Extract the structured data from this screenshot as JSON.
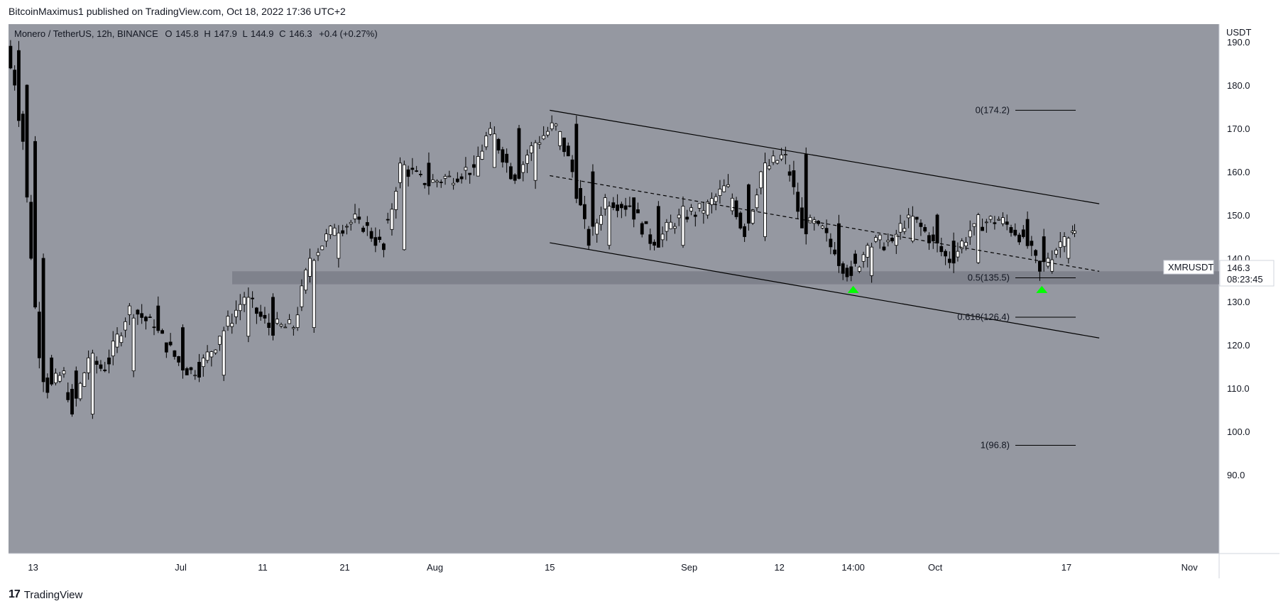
{
  "publisher": "BitcoinMaximus1 published on TradingView.com, Oct 18, 2022 17:36 UTC+2",
  "footer": {
    "logo": "17",
    "brand": "TradingView"
  },
  "legend": {
    "symbol": "Monero / TetherUS, 12h, BINANCE",
    "o_label": "O",
    "o_value": "145.8",
    "h_label": "H",
    "h_value": "147.9",
    "l_label": "L",
    "l_value": "144.9",
    "c_label": "C",
    "c_value": "146.3",
    "change": "+0.4 (+0.27%)"
  },
  "price_axis": {
    "unit": "USDT"
  },
  "price_tag": {
    "symbol": "XMRUSDT",
    "price": "146.3",
    "countdown": "08:23:45"
  },
  "colors": {
    "background": "#9598a1",
    "axis_bg": "#ffffff",
    "candle_up": "#ffffff",
    "candle_down": "#000000",
    "support_zone": "#787b86",
    "marker": "#00ff00"
  },
  "chart_data": {
    "type": "candlestick",
    "timeframe": "12h",
    "ylim": [
      90,
      190
    ],
    "y_ticks": [
      90,
      100,
      110,
      120,
      130,
      140,
      150,
      160,
      170,
      180,
      190
    ],
    "y_tick_labels": [
      "90.0",
      "100.0",
      "110.0",
      "120.0",
      "130.0",
      "140.0",
      "150.0",
      "160.0",
      "170.0",
      "180.0",
      "190.0"
    ],
    "x_range": [
      "2022-06-10",
      "2022-11-06"
    ],
    "x_ticks": [
      {
        "date": "2022-06-13",
        "label": "13"
      },
      {
        "date": "2022-07-01",
        "label": "Jul"
      },
      {
        "date": "2022-07-11",
        "label": "11"
      },
      {
        "date": "2022-07-21",
        "label": "21"
      },
      {
        "date": "2022-08-01",
        "label": "Aug"
      },
      {
        "date": "2022-08-15",
        "label": "15"
      },
      {
        "date": "2022-09-01",
        "label": "Sep"
      },
      {
        "date": "2022-09-12",
        "label": "12"
      },
      {
        "date": "2022-09-21",
        "label": "14:00"
      },
      {
        "date": "2022-10-01",
        "label": "Oct"
      },
      {
        "date": "2022-10-17",
        "label": "17"
      },
      {
        "date": "2022-11-01",
        "label": "Nov"
      }
    ],
    "ohlc_anchors": [
      {
        "date": "2022-06-10",
        "o": 189,
        "h": 192,
        "l": 186,
        "c": 188
      },
      {
        "date": "2022-06-11",
        "o": 188,
        "h": 189,
        "l": 178,
        "c": 180
      },
      {
        "date": "2022-06-12",
        "o": 180,
        "h": 181,
        "l": 165,
        "c": 167
      },
      {
        "date": "2022-06-13",
        "o": 167,
        "h": 168,
        "l": 138,
        "c": 140
      },
      {
        "date": "2022-06-14",
        "o": 140,
        "h": 141,
        "l": 115,
        "c": 117
      },
      {
        "date": "2022-06-15",
        "o": 117,
        "h": 119,
        "l": 104,
        "c": 109
      },
      {
        "date": "2022-06-17",
        "o": 109,
        "h": 116,
        "l": 105,
        "c": 114
      },
      {
        "date": "2022-06-18",
        "o": 114,
        "h": 115,
        "l": 97,
        "c": 104
      },
      {
        "date": "2022-06-20",
        "o": 104,
        "h": 119,
        "l": 103,
        "c": 117
      },
      {
        "date": "2022-06-22",
        "o": 117,
        "h": 121,
        "l": 112,
        "c": 114
      },
      {
        "date": "2022-06-25",
        "o": 114,
        "h": 130,
        "l": 113,
        "c": 129
      },
      {
        "date": "2022-06-28",
        "o": 129,
        "h": 134,
        "l": 122,
        "c": 124
      },
      {
        "date": "2022-07-01",
        "o": 124,
        "h": 125,
        "l": 114,
        "c": 116
      },
      {
        "date": "2022-07-03",
        "o": 116,
        "h": 122,
        "l": 109,
        "c": 113
      },
      {
        "date": "2022-07-06",
        "o": 113,
        "h": 124,
        "l": 112,
        "c": 122
      },
      {
        "date": "2022-07-09",
        "o": 122,
        "h": 133,
        "l": 121,
        "c": 131
      },
      {
        "date": "2022-07-12",
        "o": 131,
        "h": 133,
        "l": 122,
        "c": 124
      },
      {
        "date": "2022-07-15",
        "o": 124,
        "h": 126,
        "l": 118,
        "c": 124
      },
      {
        "date": "2022-07-17",
        "o": 124,
        "h": 142,
        "l": 123,
        "c": 140
      },
      {
        "date": "2022-07-20",
        "o": 140,
        "h": 149,
        "l": 134,
        "c": 147
      },
      {
        "date": "2022-07-23",
        "o": 147,
        "h": 152,
        "l": 143,
        "c": 149
      },
      {
        "date": "2022-07-26",
        "o": 149,
        "h": 150,
        "l": 138,
        "c": 142
      },
      {
        "date": "2022-07-28",
        "o": 142,
        "h": 164,
        "l": 141,
        "c": 162
      },
      {
        "date": "2022-07-31",
        "o": 162,
        "h": 166,
        "l": 155,
        "c": 157
      },
      {
        "date": "2022-08-03",
        "o": 157,
        "h": 162,
        "l": 153,
        "c": 159
      },
      {
        "date": "2022-08-06",
        "o": 159,
        "h": 163,
        "l": 155,
        "c": 161
      },
      {
        "date": "2022-08-08",
        "o": 161,
        "h": 172,
        "l": 159,
        "c": 170
      },
      {
        "date": "2022-08-11",
        "o": 170,
        "h": 172,
        "l": 156,
        "c": 158
      },
      {
        "date": "2022-08-13",
        "o": 158,
        "h": 168,
        "l": 155,
        "c": 166
      },
      {
        "date": "2022-08-16",
        "o": 166,
        "h": 174,
        "l": 160,
        "c": 171
      },
      {
        "date": "2022-08-18",
        "o": 171,
        "h": 172,
        "l": 158,
        "c": 160
      },
      {
        "date": "2022-08-20",
        "o": 160,
        "h": 161,
        "l": 141,
        "c": 143
      },
      {
        "date": "2022-08-22",
        "o": 143,
        "h": 156,
        "l": 142,
        "c": 154
      },
      {
        "date": "2022-08-25",
        "o": 154,
        "h": 157,
        "l": 149,
        "c": 152
      },
      {
        "date": "2022-08-28",
        "o": 152,
        "h": 153,
        "l": 141,
        "c": 143
      },
      {
        "date": "2022-08-31",
        "o": 143,
        "h": 152,
        "l": 142,
        "c": 150
      },
      {
        "date": "2022-09-03",
        "o": 150,
        "h": 153,
        "l": 147,
        "c": 151
      },
      {
        "date": "2022-09-06",
        "o": 151,
        "h": 158,
        "l": 150,
        "c": 157
      },
      {
        "date": "2022-09-08",
        "o": 157,
        "h": 159,
        "l": 142,
        "c": 145
      },
      {
        "date": "2022-09-10",
        "o": 145,
        "h": 162,
        "l": 144,
        "c": 160
      },
      {
        "date": "2022-09-13",
        "o": 160,
        "h": 167,
        "l": 157,
        "c": 164
      },
      {
        "date": "2022-09-15",
        "o": 164,
        "h": 165,
        "l": 145,
        "c": 147
      },
      {
        "date": "2022-09-17",
        "o": 147,
        "h": 150,
        "l": 143,
        "c": 148
      },
      {
        "date": "2022-09-19",
        "o": 148,
        "h": 151,
        "l": 139,
        "c": 141
      },
      {
        "date": "2022-09-21",
        "o": 141,
        "h": 145,
        "l": 134,
        "c": 136
      },
      {
        "date": "2022-09-23",
        "o": 136,
        "h": 147,
        "l": 135,
        "c": 143
      },
      {
        "date": "2022-09-26",
        "o": 143,
        "h": 146,
        "l": 139,
        "c": 144
      },
      {
        "date": "2022-09-28",
        "o": 144,
        "h": 153,
        "l": 143,
        "c": 150
      },
      {
        "date": "2022-10-01",
        "o": 150,
        "h": 151,
        "l": 142,
        "c": 144
      },
      {
        "date": "2022-10-03",
        "o": 144,
        "h": 145,
        "l": 136,
        "c": 139
      },
      {
        "date": "2022-10-06",
        "o": 139,
        "h": 150,
        "l": 138,
        "c": 148
      },
      {
        "date": "2022-10-09",
        "o": 148,
        "h": 154,
        "l": 145,
        "c": 149
      },
      {
        "date": "2022-10-12",
        "o": 149,
        "h": 150,
        "l": 143,
        "c": 145
      },
      {
        "date": "2022-10-14",
        "o": 145,
        "h": 147,
        "l": 135,
        "c": 137
      },
      {
        "date": "2022-10-15",
        "o": 137,
        "h": 142,
        "l": 136,
        "c": 140
      },
      {
        "date": "2022-10-17",
        "o": 140,
        "h": 146,
        "l": 139,
        "c": 145
      },
      {
        "date": "2022-10-18",
        "o": 145.8,
        "h": 147.9,
        "l": 144.9,
        "c": 146.3
      }
    ],
    "channel": {
      "upper": [
        {
          "date": "2022-08-15",
          "value": 174.2
        },
        {
          "date": "2022-10-21",
          "value": 152.6
        }
      ],
      "middle": [
        {
          "date": "2022-08-15",
          "value": 159.1
        },
        {
          "date": "2022-10-21",
          "value": 137.0
        }
      ],
      "lower": [
        {
          "date": "2022-08-15",
          "value": 143.6
        },
        {
          "date": "2022-10-21",
          "value": 121.6
        }
      ]
    },
    "support_zone": [
      134,
      137
    ],
    "fib_levels": [
      {
        "label": "0(174.2)",
        "value": 174.2
      },
      {
        "label": "0.5(135.5)",
        "value": 135.5
      },
      {
        "label": "0.618(126.4)",
        "value": 126.4
      },
      {
        "label": "1(96.8)",
        "value": 96.8
      }
    ],
    "markers": [
      {
        "date": "2022-09-21",
        "value": 132.8,
        "shape": "up-arrow"
      },
      {
        "date": "2022-10-14",
        "value": 132.8,
        "shape": "up-arrow"
      }
    ]
  }
}
